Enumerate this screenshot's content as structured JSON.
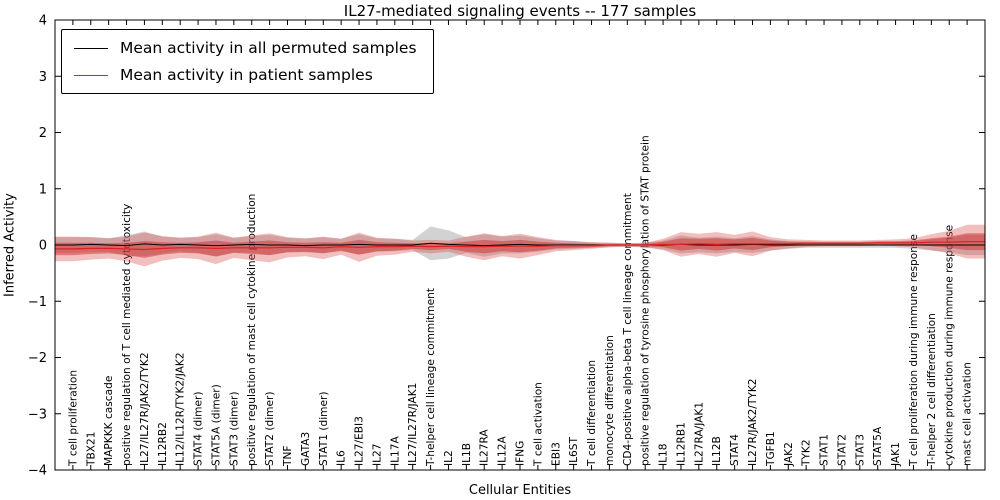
{
  "title": "IL27-mediated signaling events -- 177 samples",
  "legend": {
    "items": [
      {
        "label": "Mean activity in all permuted samples",
        "color": "#000000"
      },
      {
        "label": "Mean activity in patient samples",
        "color": "#dd2222"
      }
    ]
  },
  "chart_data": {
    "type": "line",
    "title": "IL27-mediated signaling events -- 177 samples",
    "xlabel": "Cellular Entities",
    "ylabel": "Inferred Activity",
    "ylim": [
      -4,
      4
    ],
    "yticks": [
      -4,
      -3,
      -2,
      -1,
      0,
      1,
      2,
      3,
      4
    ],
    "grid": false,
    "legend_position": "upper left",
    "categories": [
      "T cell proliferation",
      "TBX21",
      "MAPKKK cascade",
      "positive regulation of T cell mediated cytotoxicity",
      "IL27/IL27R/JAK2/TYK2",
      "IL12RB2",
      "IL12/IL12R/TYK2/JAK2",
      "STAT4 (dimer)",
      "STAT5A (dimer)",
      "STAT3 (dimer)",
      "positive regulation of mast cell cytokine production",
      "STAT2 (dimer)",
      "TNF",
      "GATA3",
      "STAT1 (dimer)",
      "IL6",
      "IL27/EBI3",
      "IL27",
      "IL17A",
      "IL27/IL27R/JAK1",
      "T-helper cell lineage commitment",
      "IL2",
      "IL1B",
      "IL27RA",
      "IL12A",
      "IFNG",
      "T cell activation",
      "EBI3",
      "IL6ST",
      "T cell differentiation",
      "monocyte differentiation",
      "CD4-positive alpha-beta T cell lineage commitment",
      "positive regulation of tyrosine phosphorylation of STAT protein",
      "IL18",
      "IL12RB1",
      "IL27RA/JAK1",
      "IL12B",
      "STAT4",
      "IL27R/JAK2/TYK2",
      "TGFB1",
      "JAK2",
      "TYK2",
      "STAT1",
      "STAT2",
      "STAT3",
      "STAT5A",
      "JAK1",
      "T cell proliferation during immune response",
      "T-helper 2 cell differentiation",
      "cytokine production during immune response",
      "mast cell activation"
    ],
    "series": [
      {
        "name": "Mean activity in all permuted samples",
        "color": "#000000",
        "band_color": "#888888",
        "values": [
          0.0,
          0.01,
          0.0,
          -0.01,
          0.02,
          0.0,
          0.01,
          0.0,
          -0.01,
          0.0,
          0.01,
          0.0,
          0.0,
          -0.01,
          0.0,
          0.0,
          0.01,
          0.0,
          0.0,
          0.0,
          0.03,
          0.01,
          0.0,
          -0.01,
          0.0,
          0.01,
          0.0,
          0.0,
          0.0,
          0.0,
          0.0,
          0.0,
          0.0,
          0.0,
          0.01,
          0.0,
          0.0,
          0.0,
          0.01,
          0.0,
          0.0,
          0.0,
          0.0,
          0.0,
          0.0,
          0.0,
          0.0,
          0.0,
          0.0,
          0.0,
          0.0
        ],
        "band_halfwidth": [
          0.14,
          0.13,
          0.12,
          0.18,
          0.22,
          0.15,
          0.12,
          0.14,
          0.2,
          0.13,
          0.15,
          0.18,
          0.13,
          0.12,
          0.14,
          0.11,
          0.18,
          0.12,
          0.11,
          0.09,
          0.3,
          0.25,
          0.14,
          0.2,
          0.15,
          0.16,
          0.12,
          0.08,
          0.07,
          0.05,
          0.04,
          0.03,
          0.04,
          0.08,
          0.16,
          0.13,
          0.15,
          0.12,
          0.15,
          0.1,
          0.07,
          0.05,
          0.05,
          0.05,
          0.05,
          0.05,
          0.05,
          0.07,
          0.1,
          0.13,
          0.18
        ]
      },
      {
        "name": "Mean activity in patient samples",
        "color": "#dd2222",
        "band_color": "#dd4444",
        "values": [
          -0.07,
          -0.06,
          -0.06,
          -0.07,
          -0.08,
          -0.06,
          -0.05,
          -0.05,
          -0.06,
          -0.05,
          -0.05,
          -0.05,
          -0.04,
          -0.04,
          -0.05,
          -0.03,
          -0.04,
          -0.03,
          -0.03,
          -0.02,
          -0.03,
          -0.02,
          -0.03,
          -0.03,
          -0.02,
          -0.02,
          -0.02,
          -0.01,
          -0.01,
          -0.01,
          0.0,
          0.0,
          0.0,
          0.01,
          0.01,
          0.02,
          0.01,
          0.02,
          0.02,
          0.02,
          0.02,
          0.03,
          0.03,
          0.03,
          0.03,
          0.04,
          0.04,
          0.04,
          0.05,
          0.05,
          0.06
        ],
        "band_halfwidth": [
          0.22,
          0.2,
          0.18,
          0.22,
          0.3,
          0.22,
          0.18,
          0.2,
          0.28,
          0.18,
          0.22,
          0.26,
          0.18,
          0.16,
          0.2,
          0.14,
          0.26,
          0.16,
          0.14,
          0.1,
          0.12,
          0.1,
          0.18,
          0.24,
          0.18,
          0.22,
          0.16,
          0.1,
          0.08,
          0.06,
          0.04,
          0.03,
          0.04,
          0.1,
          0.22,
          0.18,
          0.22,
          0.16,
          0.22,
          0.12,
          0.08,
          0.06,
          0.05,
          0.05,
          0.05,
          0.05,
          0.06,
          0.08,
          0.14,
          0.2,
          0.3
        ]
      }
    ]
  }
}
